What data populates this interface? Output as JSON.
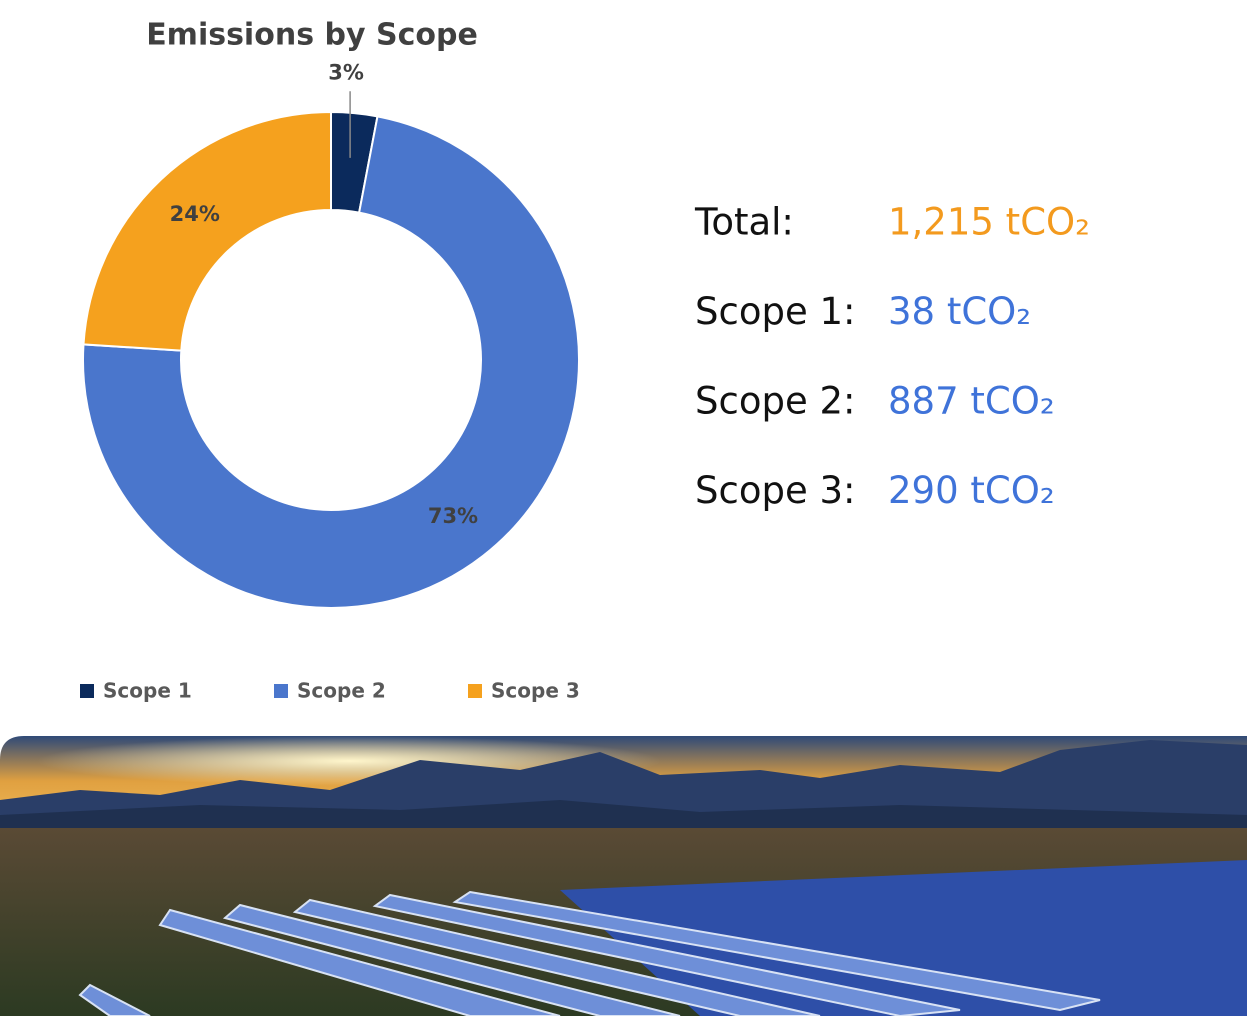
{
  "chart_data": {
    "type": "pie",
    "title": "Emissions by Scope",
    "categories": [
      "Scope 1",
      "Scope 2",
      "Scope 3"
    ],
    "values": [
      3,
      73,
      24
    ],
    "value_labels": [
      "3%",
      "73%",
      "24%"
    ],
    "colors": [
      "#0b2a5c",
      "#4a76cc",
      "#f5a11e"
    ],
    "legend": "bottom"
  },
  "stats": [
    {
      "label": "Total:",
      "value": "1,215 tCO₂"
    },
    {
      "label": "Scope 1:",
      "value": "38 tCO₂"
    },
    {
      "label": "Scope 2:",
      "value": "887 tCO₂"
    },
    {
      "label": "Scope 3:",
      "value": "290 tCO₂"
    }
  ]
}
